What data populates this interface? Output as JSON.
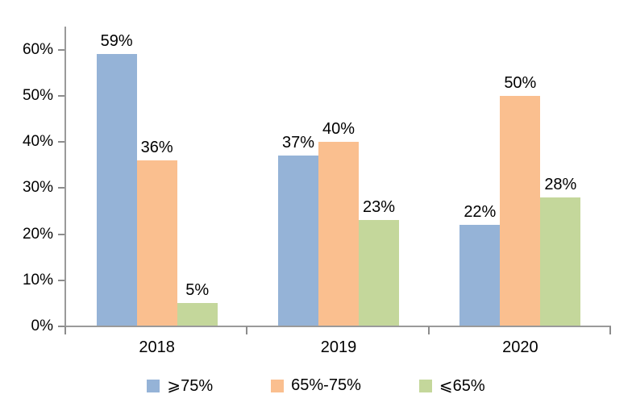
{
  "chart_data": {
    "type": "bar",
    "title": "",
    "xlabel": "",
    "ylabel": "",
    "categories": [
      "2018",
      "2019",
      "2020"
    ],
    "series": [
      {
        "name": "⩾75%",
        "color": "#95B3D7",
        "values": [
          59,
          37,
          22
        ]
      },
      {
        "name": "65%-75%",
        "color": "#FABF8F",
        "values": [
          36,
          40,
          50
        ]
      },
      {
        "name": "⩽65%",
        "color": "#C4D79B",
        "values": [
          5,
          23,
          28
        ]
      }
    ],
    "ylim": [
      0,
      65
    ],
    "y_ticks": [
      0,
      10,
      20,
      30,
      40,
      50,
      60
    ],
    "value_suffix": "%",
    "grid": false,
    "data_labels": true,
    "legend_position": "bottom",
    "axis_color": "#9A9A9A",
    "tick_color": "#8C8C8C",
    "text_color": "#000000",
    "background": "#FFFFFF"
  }
}
